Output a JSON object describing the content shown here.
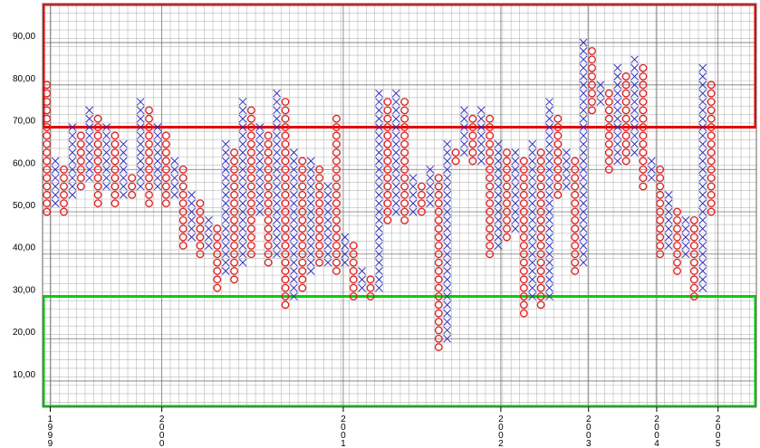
{
  "chart_data": {
    "type": "point_and_figure",
    "box_size": 2,
    "ylim": [
      4,
      99
    ],
    "xlim": [
      -0.5,
      83.3
    ],
    "yticks": [
      {
        "value": 10,
        "label": "10,00"
      },
      {
        "value": 20,
        "label": "20,00"
      },
      {
        "value": 30,
        "label": "30,00"
      },
      {
        "value": 40,
        "label": "40,00"
      },
      {
        "value": 50,
        "label": "50,00"
      },
      {
        "value": 60,
        "label": "60,00"
      },
      {
        "value": 70,
        "label": "70,00"
      },
      {
        "value": 80,
        "label": "80,00"
      },
      {
        "value": 90,
        "label": "90,00"
      }
    ],
    "xticks": [
      {
        "value": 0.4,
        "label": "1999"
      },
      {
        "value": 13.5,
        "label": "2000"
      },
      {
        "value": 34.8,
        "label": "2001"
      },
      {
        "value": 53.3,
        "label": "2002"
      },
      {
        "value": 63.6,
        "label": "2003"
      },
      {
        "value": 71.6,
        "label": "2004"
      },
      {
        "value": 78.8,
        "label": "2005"
      }
    ],
    "x_color": "#3030c0",
    "o_color": "#e02020",
    "zones": [
      {
        "low": 70,
        "high": 99,
        "color": "#e00000"
      },
      {
        "low": 4,
        "high": 30,
        "color": "#00d000"
      }
    ],
    "columns": [
      {
        "type": "O",
        "low": 50,
        "high": 80
      },
      {
        "type": "X",
        "low": 52,
        "high": 62
      },
      {
        "type": "O",
        "low": 50,
        "high": 60
      },
      {
        "type": "X",
        "low": 54,
        "high": 70
      },
      {
        "type": "O",
        "low": 56,
        "high": 68
      },
      {
        "type": "X",
        "low": 58,
        "high": 74
      },
      {
        "type": "O",
        "low": 52,
        "high": 72
      },
      {
        "type": "X",
        "low": 56,
        "high": 70
      },
      {
        "type": "O",
        "low": 52,
        "high": 68
      },
      {
        "type": "X",
        "low": 54,
        "high": 66
      },
      {
        "type": "O",
        "low": 54,
        "high": 58
      },
      {
        "type": "X",
        "low": 56,
        "high": 76
      },
      {
        "type": "O",
        "low": 52,
        "high": 74
      },
      {
        "type": "X",
        "low": 56,
        "high": 70
      },
      {
        "type": "O",
        "low": 52,
        "high": 68
      },
      {
        "type": "X",
        "low": 54,
        "high": 62
      },
      {
        "type": "O",
        "low": 42,
        "high": 60
      },
      {
        "type": "X",
        "low": 44,
        "high": 54
      },
      {
        "type": "O",
        "low": 40,
        "high": 52
      },
      {
        "type": "X",
        "low": 42,
        "high": 48
      },
      {
        "type": "O",
        "low": 32,
        "high": 46
      },
      {
        "type": "X",
        "low": 36,
        "high": 66
      },
      {
        "type": "O",
        "low": 34,
        "high": 64
      },
      {
        "type": "X",
        "low": 38,
        "high": 76
      },
      {
        "type": "O",
        "low": 40,
        "high": 74
      },
      {
        "type": "X",
        "low": 50,
        "high": 70
      },
      {
        "type": "O",
        "low": 38,
        "high": 68
      },
      {
        "type": "X",
        "low": 40,
        "high": 78
      },
      {
        "type": "O",
        "low": 28,
        "high": 76
      },
      {
        "type": "X",
        "low": 30,
        "high": 64
      },
      {
        "type": "O",
        "low": 32,
        "high": 62
      },
      {
        "type": "X",
        "low": 36,
        "high": 62
      },
      {
        "type": "O",
        "low": 38,
        "high": 60
      },
      {
        "type": "X",
        "low": 38,
        "high": 56
      },
      {
        "type": "O",
        "low": 36,
        "high": 72
      },
      {
        "type": "X",
        "low": 38,
        "high": 44
      },
      {
        "type": "O",
        "low": 30,
        "high": 42
      },
      {
        "type": "X",
        "low": 32,
        "high": 36
      },
      {
        "type": "O",
        "low": 30,
        "high": 34
      },
      {
        "type": "X",
        "low": 32,
        "high": 78
      },
      {
        "type": "O",
        "low": 48,
        "high": 76
      },
      {
        "type": "X",
        "low": 50,
        "high": 78
      },
      {
        "type": "O",
        "low": 48,
        "high": 76
      },
      {
        "type": "X",
        "low": 50,
        "high": 58
      },
      {
        "type": "O",
        "low": 50,
        "high": 56
      },
      {
        "type": "X",
        "low": 52,
        "high": 60
      },
      {
        "type": "O",
        "low": 18,
        "high": 58
      },
      {
        "type": "X",
        "low": 20,
        "high": 66
      },
      {
        "type": "O",
        "low": 62,
        "high": 64
      },
      {
        "type": "X",
        "low": 64,
        "high": 74
      },
      {
        "type": "O",
        "low": 62,
        "high": 72
      },
      {
        "type": "X",
        "low": 62,
        "high": 74
      },
      {
        "type": "O",
        "low": 40,
        "high": 72
      },
      {
        "type": "X",
        "low": 42,
        "high": 66
      },
      {
        "type": "O",
        "low": 44,
        "high": 64
      },
      {
        "type": "X",
        "low": 46,
        "high": 64
      },
      {
        "type": "O",
        "low": 26,
        "high": 62
      },
      {
        "type": "X",
        "low": 30,
        "high": 66
      },
      {
        "type": "O",
        "low": 28,
        "high": 64
      },
      {
        "type": "X",
        "low": 30,
        "high": 76
      },
      {
        "type": "O",
        "low": 54,
        "high": 72
      },
      {
        "type": "X",
        "low": 56,
        "high": 64
      },
      {
        "type": "O",
        "low": 36,
        "high": 62
      },
      {
        "type": "X",
        "low": 38,
        "high": 90
      },
      {
        "type": "O",
        "low": 74,
        "high": 88
      },
      {
        "type": "X",
        "low": 76,
        "high": 80
      },
      {
        "type": "O",
        "low": 60,
        "high": 78
      },
      {
        "type": "X",
        "low": 62,
        "high": 84
      },
      {
        "type": "O",
        "low": 62,
        "high": 82
      },
      {
        "type": "X",
        "low": 64,
        "high": 86
      },
      {
        "type": "O",
        "low": 56,
        "high": 84
      },
      {
        "type": "X",
        "low": 58,
        "high": 62
      },
      {
        "type": "O",
        "low": 40,
        "high": 60
      },
      {
        "type": "X",
        "low": 42,
        "high": 54
      },
      {
        "type": "O",
        "low": 36,
        "high": 50
      },
      {
        "type": "X",
        "low": 40,
        "high": 48
      },
      {
        "type": "O",
        "low": 30,
        "high": 48
      },
      {
        "type": "X",
        "low": 32,
        "high": 84
      },
      {
        "type": "O",
        "low": 50,
        "high": 80
      }
    ]
  }
}
